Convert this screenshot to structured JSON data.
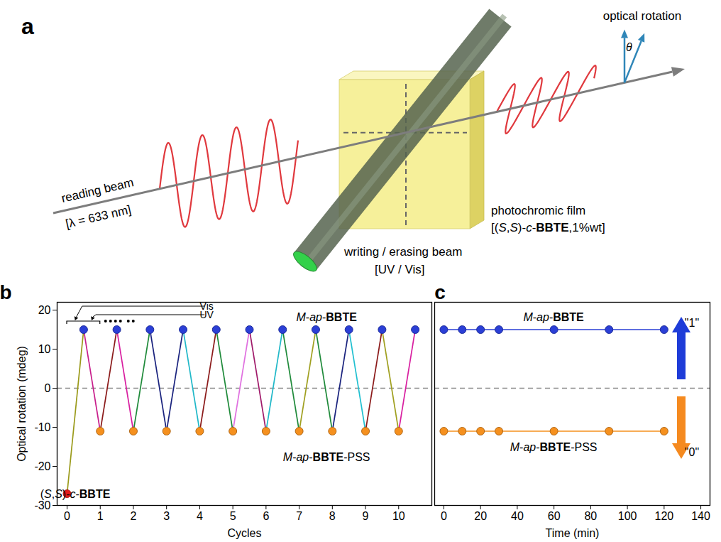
{
  "diagram": {
    "panel": "a",
    "labels": {
      "optical_rotation": "optical rotation",
      "angle": "θ",
      "reading_beam": "reading beam",
      "reading_wavelength": "[λ = 633 nm]",
      "film": "photochromic film",
      "film_content": "[(S,S)-c-BBTE,1%wt]",
      "writing_beam": "writing / erasing beam",
      "writing_light": "[UV / Vis]"
    }
  },
  "chart_data": [
    {
      "panel": "b",
      "type": "line",
      "xlabel": "Cycles",
      "ylabel": "Optical rotation (mdeg)",
      "xlim": [
        -0.3,
        11
      ],
      "ylim": [
        -30,
        22
      ],
      "xticks": [
        0,
        1,
        2,
        3,
        4,
        5,
        6,
        7,
        8,
        9,
        10
      ],
      "yticks": [
        -30,
        -20,
        -10,
        0,
        10,
        20
      ],
      "reference_line": {
        "y": 0,
        "line_style": "dashed"
      },
      "annotations": [
        "Vis",
        "UV"
      ],
      "x": [
        0,
        0.5,
        1,
        1.5,
        2,
        2.5,
        3,
        3.5,
        4,
        4.5,
        5,
        5.5,
        6,
        6.5,
        7,
        7.5,
        8,
        8.5,
        9,
        9.5,
        10,
        10.5
      ],
      "values": [
        -27,
        15,
        -11,
        15,
        -11,
        15,
        -11,
        15,
        -11,
        15,
        -11,
        15,
        -11,
        15,
        -11,
        15,
        -11,
        15,
        -11,
        15,
        -11,
        15
      ],
      "colors": [
        "#9a9a1a",
        "#c81f8c",
        "#8b1a1a",
        "#d81fa0",
        "#1f8a3a",
        "#1a237e",
        "#1a237e",
        "#20b8c8",
        "#8b1a1a",
        "#1f8a3a",
        "#e070e0",
        "#a01a6a",
        "#20b8c8",
        "#1f8a3a",
        "#a0a020",
        "#1f8a3a",
        "#1a237e",
        "#20c0d0",
        "#8b1a1a",
        "#a0a020",
        "#d81fa0"
      ],
      "series": [
        {
          "name": "(S,S)-c-BBTE",
          "type": "scatter",
          "marker": "circle",
          "color": "#e41a1c",
          "x": [
            0
          ],
          "values": [
            -27
          ]
        },
        {
          "name": "M-ap-BBTE",
          "type": "scatter",
          "marker": "circle",
          "color": "#2b3fd6",
          "x": [
            0.5,
            1.5,
            2.5,
            3.5,
            4.5,
            5.5,
            6.5,
            7.5,
            8.5,
            9.5,
            10.5
          ],
          "values": [
            15,
            15,
            15,
            15,
            15,
            15,
            15,
            15,
            15,
            15,
            15
          ]
        },
        {
          "name": "M-ap-BBTE-PSS",
          "type": "scatter",
          "marker": "circle",
          "color": "#f5901e",
          "x": [
            1,
            2,
            3,
            4,
            5,
            6,
            7,
            8,
            9,
            10
          ],
          "values": [
            -11,
            -11,
            -11,
            -11,
            -11,
            -11,
            -11,
            -11,
            -11,
            -11
          ]
        }
      ]
    },
    {
      "panel": "c",
      "type": "line",
      "xlabel": "Time (min)",
      "xlim": [
        -5,
        145
      ],
      "ylim": [
        -30,
        22
      ],
      "xticks": [
        0,
        20,
        40,
        60,
        80,
        100,
        120,
        140
      ],
      "tick_labels": "x",
      "reference_line": {
        "y": 0,
        "line_style": "dashed"
      },
      "series": [
        {
          "name": "M-ap-BBTE",
          "marker": "circle",
          "color": "#2b3fd6",
          "x": [
            0,
            10,
            20,
            30,
            60,
            90,
            120
          ],
          "values": [
            15,
            15,
            15,
            15,
            15,
            15,
            15
          ]
        },
        {
          "name": "M-ap-BBTE-PSS",
          "marker": "circle",
          "color": "#f5901e",
          "x": [
            0,
            10,
            20,
            30,
            60,
            90,
            120
          ],
          "values": [
            -11,
            -11,
            -11,
            -11,
            -11,
            -11,
            -11
          ]
        }
      ],
      "states": [
        {
          "label": "\"1\"",
          "color": "#1e3cd8"
        },
        {
          "label": "\"0\"",
          "color": "#f58a1f"
        }
      ]
    }
  ]
}
